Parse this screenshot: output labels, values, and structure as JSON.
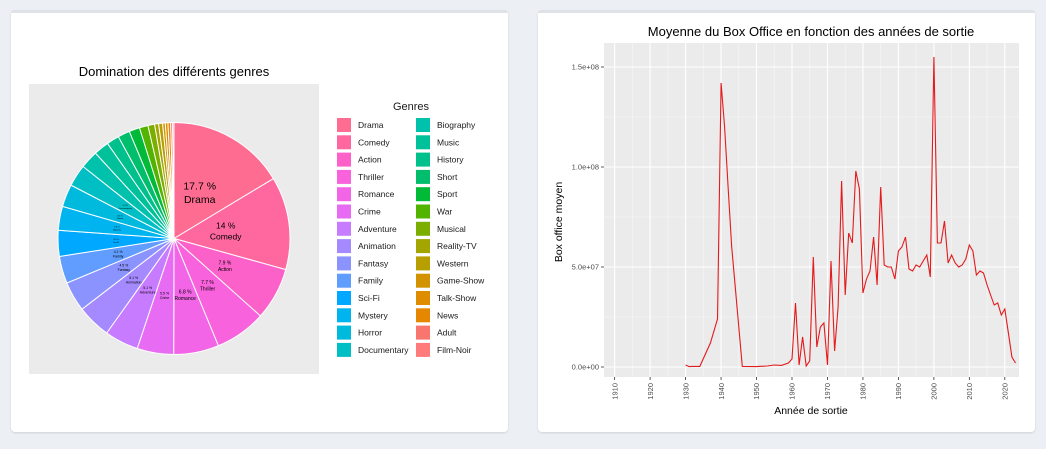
{
  "chart_data": [
    {
      "type": "pie",
      "title": "Domination des différents genres",
      "legend_title": "Genres",
      "legend_position": "right",
      "categories": [
        "Drama",
        "Comedy",
        "Action",
        "Thriller",
        "Romance",
        "Crime",
        "Adventure",
        "Animation",
        "Fantasy",
        "Family",
        "Sci-Fi",
        "Mystery",
        "Horror",
        "Documentary",
        "Biography",
        "Music",
        "History",
        "Short",
        "Sport",
        "War",
        "Musical",
        "Reality-TV",
        "Western",
        "Game-Show",
        "Talk-Show",
        "News",
        "Adult",
        "Film-Noir"
      ],
      "values": [
        17.7,
        14.0,
        7.9,
        7.7,
        6.8,
        5.5,
        5.1,
        5.1,
        4.5,
        4.1,
        3.9,
        3.6,
        3.4,
        3.3,
        2.7,
        2.3,
        1.9,
        1.8,
        1.6,
        1.3,
        1.0,
        0.6,
        0.6,
        0.4,
        0.4,
        0.4,
        0.3,
        0.2
      ],
      "labels": [
        {
          "pct": "17.7 %",
          "name": "Drama"
        },
        {
          "pct": "14 %",
          "name": "Comedy"
        },
        {
          "pct": "7.9 %",
          "name": "Action"
        },
        {
          "pct": "7.7 %",
          "name": "Thriller"
        },
        {
          "pct": "6.8 %",
          "name": "Romance"
        },
        {
          "pct": "5.5 %",
          "name": "Crime"
        },
        {
          "pct": "5.1 %",
          "name": "Adventure"
        },
        {
          "pct": "5.1 %",
          "name": "Animation"
        },
        {
          "pct": "4.5 %",
          "name": "Fantasy"
        },
        {
          "pct": "4.1 %",
          "name": "Family"
        },
        {
          "pct": "3.9 %",
          "name": "Sci-Fi"
        },
        {
          "pct": "3.6 %",
          "name": "Mystery"
        },
        {
          "pct": "3.4 %",
          "name": "Horror"
        },
        {
          "pct": "3.3 %",
          "name": "Documentary"
        }
      ],
      "colors": [
        "#FF6C91",
        "#FF689F",
        "#FC61C9",
        "#F962DD",
        "#F265E7",
        "#E76BF3",
        "#C77CFF",
        "#A58AFF",
        "#8B93FF",
        "#619CFF",
        "#00A9FF",
        "#00B4EF",
        "#00BADE",
        "#00BFC4",
        "#00C1AB",
        "#00C19A",
        "#00C08B",
        "#00BE6C",
        "#00BA38",
        "#53B400",
        "#7CAE00",
        "#A3A500",
        "#B79F00",
        "#D39200",
        "#DE8C00",
        "#E58700",
        "#F8766D",
        "#FF7A7A"
      ],
      "panel_background": "#ebebeb",
      "slice_border": "#ffffff"
    },
    {
      "type": "line",
      "title": "Moyenne du Box Office en fonction des années de sortie",
      "xlabel": "Année de sortie",
      "ylabel": "Box office moyen",
      "xlim": [
        1907,
        2024
      ],
      "ylim": [
        -5000000,
        162000000
      ],
      "xticks": [
        1910,
        1920,
        1930,
        1940,
        1950,
        1960,
        1970,
        1980,
        1990,
        2000,
        2010,
        2020
      ],
      "yticks": [
        0,
        50000000,
        100000000,
        150000000
      ],
      "ytick_labels": [
        "0.0e+00",
        "5.0e+07",
        "1.0e+08",
        "1.5e+08"
      ],
      "grid": true,
      "color": "#e41a1c",
      "panel_background": "#ebebeb",
      "x": [
        1930,
        1931,
        1932,
        1934,
        1937,
        1939,
        1940,
        1941,
        1942,
        1943,
        1946,
        1950,
        1953,
        1955,
        1957,
        1959,
        1960,
        1961,
        1962,
        1963,
        1964,
        1965,
        1966,
        1967,
        1968,
        1969,
        1970,
        1971,
        1972,
        1973,
        1974,
        1975,
        1976,
        1977,
        1978,
        1979,
        1980,
        1981,
        1982,
        1983,
        1984,
        1985,
        1986,
        1987,
        1988,
        1989,
        1990,
        1991,
        1992,
        1993,
        1994,
        1995,
        1996,
        1997,
        1998,
        1999,
        2000,
        2001,
        2002,
        2003,
        2004,
        2005,
        2006,
        2007,
        2008,
        2009,
        2010,
        2011,
        2012,
        2013,
        2014,
        2015,
        2016,
        2017,
        2018,
        2019,
        2020,
        2021,
        2022,
        2023
      ],
      "y": [
        1000000,
        200000,
        300000,
        300000,
        12000000,
        24000000,
        142000000,
        120000000,
        90000000,
        60000000,
        300000,
        200000,
        500000,
        1000000,
        800000,
        2000000,
        4000000,
        32000000,
        1000000,
        15000000,
        500000,
        3000000,
        55000000,
        10000000,
        20000000,
        22000000,
        1000000,
        53000000,
        8000000,
        30000000,
        93000000,
        36000000,
        67000000,
        62000000,
        98000000,
        89000000,
        37000000,
        44000000,
        48000000,
        65000000,
        41000000,
        90000000,
        51000000,
        50000000,
        50000000,
        44000000,
        58000000,
        60000000,
        65000000,
        49000000,
        48000000,
        51000000,
        50000000,
        53000000,
        56000000,
        45000000,
        155000000,
        62000000,
        62000000,
        73000000,
        52000000,
        56000000,
        52000000,
        50000000,
        51000000,
        54000000,
        61000000,
        58000000,
        46000000,
        48000000,
        47000000,
        41000000,
        36000000,
        31000000,
        32000000,
        26000000,
        29000000,
        17000000,
        5000000,
        2000000
      ]
    }
  ]
}
